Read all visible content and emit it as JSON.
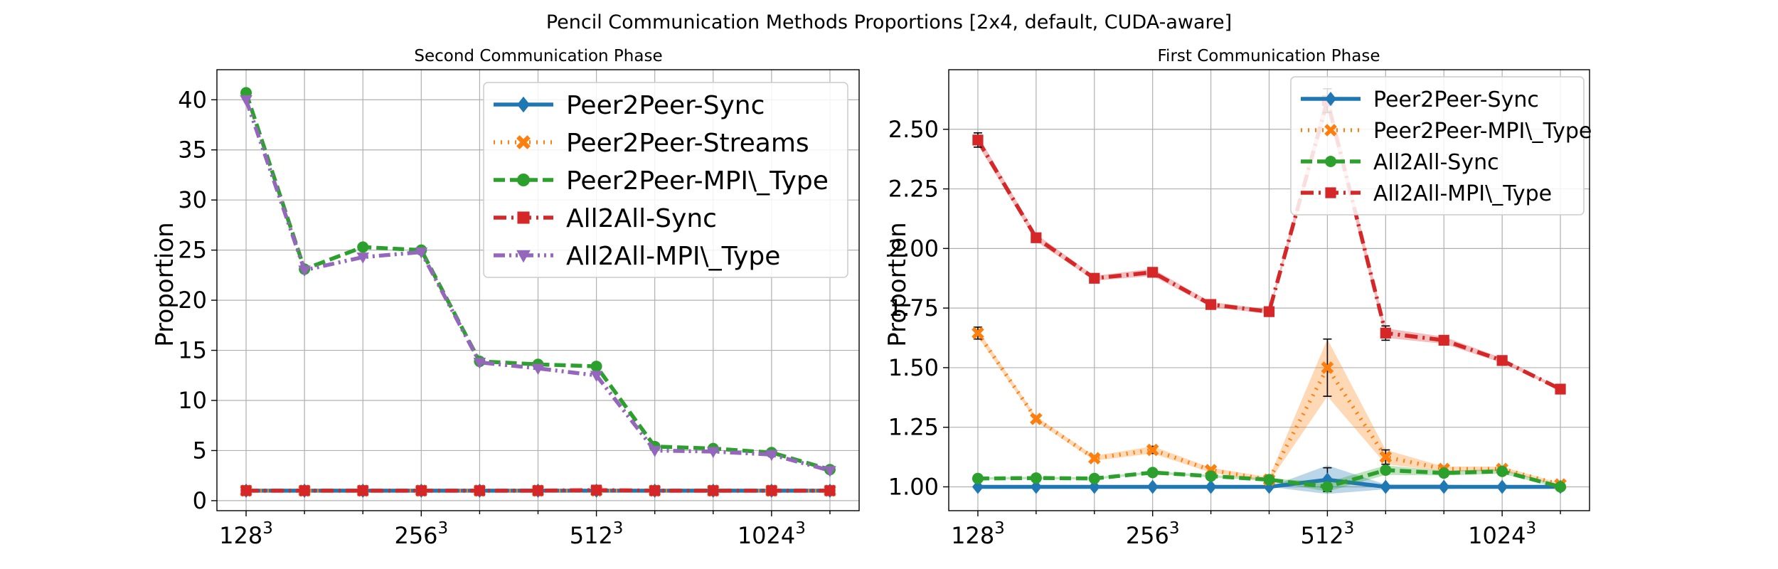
{
  "figure": {
    "title": "Pencil Communication Methods Proportions [2x4, default, CUDA-aware]"
  },
  "chart_data": [
    {
      "type": "line",
      "title": "Second Communication Phase",
      "xlabel": "",
      "ylabel": "Proportion",
      "x_positions": [
        0,
        1,
        2,
        3,
        4,
        5,
        6,
        7,
        8,
        9,
        10
      ],
      "xticks": [
        {
          "pos": 0,
          "base": "128",
          "exp": "3"
        },
        {
          "pos": 3,
          "base": "256",
          "exp": "3"
        },
        {
          "pos": 6,
          "base": "512",
          "exp": "3"
        },
        {
          "pos": 9,
          "base": "1024",
          "exp": "3"
        }
      ],
      "xlim": [
        -0.5,
        10.5
      ],
      "ylim": [
        -1,
        43
      ],
      "yticks": [
        0,
        5,
        10,
        15,
        20,
        25,
        30,
        35,
        40
      ],
      "grid": true,
      "legend_position": "upper right",
      "series": [
        {
          "name": "Peer2Peer-Sync",
          "color": "#1f77b4",
          "dash": "solid",
          "marker": "diamond",
          "values": [
            1,
            1,
            1,
            1,
            1,
            1,
            1,
            1,
            1,
            1,
            1
          ]
        },
        {
          "name": "Peer2Peer-Streams",
          "color": "#ff7f0e",
          "dash": "dotted",
          "marker": "x",
          "values": [
            1.0,
            1.0,
            1.0,
            1.0,
            1.0,
            1.0,
            1.0,
            1.0,
            1.0,
            1.0,
            1.0
          ]
        },
        {
          "name": "Peer2Peer-MPI\\_Type",
          "color": "#2ca02c",
          "dash": "dashed",
          "marker": "circle",
          "values": [
            40.7,
            23.1,
            25.3,
            25.0,
            13.9,
            13.6,
            13.4,
            5.4,
            5.2,
            4.8,
            3.1
          ]
        },
        {
          "name": "All2All-Sync",
          "color": "#d62728",
          "dash": "dashdot",
          "marker": "square",
          "values": [
            1.0,
            1.0,
            1.0,
            1.0,
            1.0,
            1.0,
            1.05,
            1.0,
            1.0,
            1.0,
            1.0
          ]
        },
        {
          "name": "All2All-MPI\\_Type",
          "color": "#9467bd",
          "dash": "dashdotdot",
          "marker": "triangle-down",
          "values": [
            40.0,
            23.0,
            24.3,
            24.8,
            13.8,
            13.2,
            12.5,
            5.0,
            4.9,
            4.6,
            3.0
          ]
        }
      ]
    },
    {
      "type": "line",
      "title": "First Communication Phase",
      "xlabel": "",
      "ylabel": "Proportion",
      "x_positions": [
        0,
        1,
        2,
        3,
        4,
        5,
        6,
        7,
        8,
        9,
        10
      ],
      "xticks": [
        {
          "pos": 0,
          "base": "128",
          "exp": "3"
        },
        {
          "pos": 3,
          "base": "256",
          "exp": "3"
        },
        {
          "pos": 6,
          "base": "512",
          "exp": "3"
        },
        {
          "pos": 9,
          "base": "1024",
          "exp": "3"
        }
      ],
      "xlim": [
        -0.5,
        10.5
      ],
      "ylim": [
        0.9,
        2.75
      ],
      "yticks": [
        1.0,
        1.25,
        1.5,
        1.75,
        2.0,
        2.25,
        2.5
      ],
      "ytick_labels": [
        "1.00",
        "1.25",
        "1.50",
        "1.75",
        "2.00",
        "2.25",
        "2.50"
      ],
      "grid": true,
      "legend_position": "upper right",
      "series": [
        {
          "name": "Peer2Peer-Sync",
          "color": "#1f77b4",
          "dash": "solid",
          "marker": "diamond",
          "values": [
            1,
            1,
            1,
            1,
            1,
            1,
            1.03,
            1,
            1,
            1,
            1
          ],
          "band": [
            0,
            0,
            0,
            0,
            0,
            0,
            0.06,
            0.01,
            0.01,
            0,
            0
          ],
          "err": [
            0,
            0,
            0,
            0,
            0,
            0,
            0.05,
            0,
            0,
            0,
            0
          ]
        },
        {
          "name": "Peer2Peer-MPI\\_Type",
          "color": "#ff7f0e",
          "dash": "dotted",
          "marker": "x",
          "values": [
            1.645,
            1.285,
            1.12,
            1.155,
            1.07,
            1.03,
            1.5,
            1.125,
            1.075,
            1.075,
            1.01
          ],
          "band": [
            0.015,
            0.01,
            0.01,
            0.015,
            0.01,
            0.01,
            0.12,
            0.03,
            0.01,
            0.01,
            0.005
          ],
          "err": [
            0.025,
            0.01,
            0.01,
            0.015,
            0,
            0,
            0.12,
            0.03,
            0,
            0,
            0
          ]
        },
        {
          "name": "All2All-Sync",
          "color": "#2ca02c",
          "dash": "dashed",
          "marker": "circle",
          "values": [
            1.035,
            1.037,
            1.035,
            1.06,
            1.045,
            1.03,
            1.0,
            1.07,
            1.058,
            1.065,
            1.0
          ],
          "band": [
            0.005,
            0.005,
            0.005,
            0.005,
            0.005,
            0.005,
            0.02,
            0.02,
            0.01,
            0.01,
            0.005
          ],
          "err": [
            0,
            0,
            0,
            0,
            0,
            0,
            0,
            0,
            0,
            0,
            0
          ]
        },
        {
          "name": "All2All-MPI\\_Type",
          "color": "#d62728",
          "dash": "dashdot",
          "marker": "square",
          "values": [
            2.455,
            2.045,
            1.875,
            1.9,
            1.765,
            1.735,
            2.62,
            1.645,
            1.615,
            1.53,
            1.41
          ],
          "band": [
            0.02,
            0.015,
            0.01,
            0.015,
            0.01,
            0.01,
            0.04,
            0.02,
            0.015,
            0.01,
            0.005
          ],
          "err": [
            0.03,
            0,
            0,
            0.01,
            0,
            0,
            0.05,
            0.03,
            0,
            0,
            0
          ]
        }
      ]
    }
  ]
}
